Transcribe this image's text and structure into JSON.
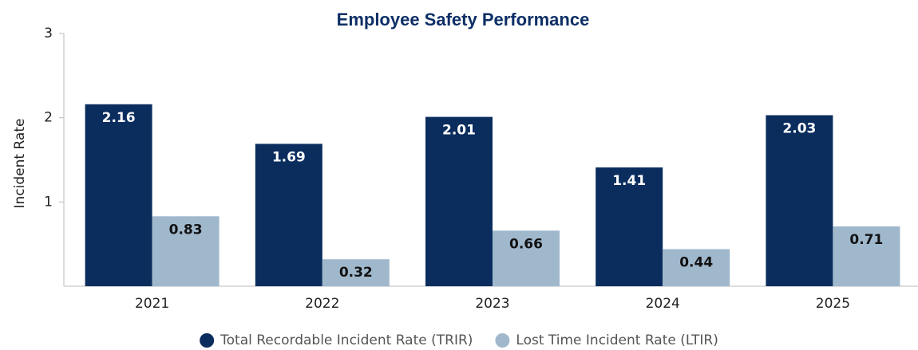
{
  "chart_data": {
    "type": "bar",
    "title": "Employee Safety Performance",
    "y_label": "Incident Rate",
    "categories": [
      "2021",
      "2022",
      "2023",
      "2024",
      "2025"
    ],
    "series": [
      {
        "name": "Total Recordable Incident Rate (TRIR)",
        "color": "#0a2d5e",
        "label_color": "#ffffff",
        "values": [
          2.16,
          1.69,
          2.01,
          1.41,
          2.03
        ]
      },
      {
        "name": "Lost Time Incident Rate (LTIR)",
        "color": "#a0b8cc",
        "label_color": "#111111",
        "values": [
          0.83,
          0.32,
          0.66,
          0.44,
          0.71
        ]
      }
    ],
    "ylim": [
      0,
      3
    ],
    "yticks": [
      1,
      2,
      3
    ],
    "grid": false
  }
}
